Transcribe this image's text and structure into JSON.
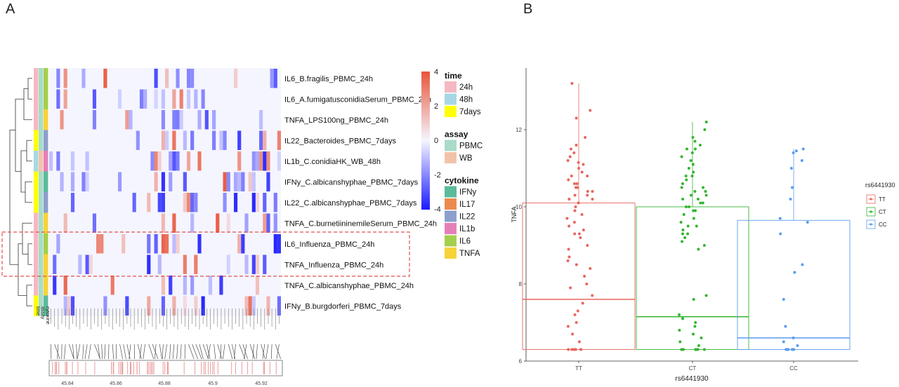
{
  "panels": {
    "a": "A",
    "b": "B"
  },
  "chart_data": [
    {
      "type": "heatmap",
      "rows": [
        {
          "label": "IL6_B.fragilis_PBMC_24h",
          "time": "24h",
          "assay": "PBMC",
          "cytokine": "IL6"
        },
        {
          "label": "IL6_A.fumigatusconidiaSerum_PBMC_24h",
          "time": "24h",
          "assay": "PBMC",
          "cytokine": "IL6"
        },
        {
          "label": "TNFA_LPS100ng_PBMC_24h",
          "time": "24h",
          "assay": "PBMC",
          "cytokine": "TNFA"
        },
        {
          "label": "IL22_Bacteroides_PBMC_7days",
          "time": "7days",
          "assay": "PBMC",
          "cytokine": "IL22"
        },
        {
          "label": "IL1b_C.conidiaHK_WB_48h",
          "time": "48h",
          "assay": "WB",
          "cytokine": "IL1b"
        },
        {
          "label": "IFNy_C.albicanshyphae_PBMC_7days",
          "time": "7days",
          "assay": "PBMC",
          "cytokine": "IFNy"
        },
        {
          "label": "IL22_C.albicanshyphae_PBMC_7days",
          "time": "7days",
          "assay": "PBMC",
          "cytokine": "IL22"
        },
        {
          "label": "TNFA_C.burnetiininemileSerum_PBMC_24h",
          "time": "24h",
          "assay": "PBMC",
          "cytokine": "TNFA"
        },
        {
          "label": "IL6_Influenza_PBMC_24h",
          "time": "24h",
          "assay": "PBMC",
          "cytokine": "IL6"
        },
        {
          "label": "TNFA_Influenza_PBMC_24h",
          "time": "24h",
          "assay": "PBMC",
          "cytokine": "TNFA"
        },
        {
          "label": "TNFA_C.albicanshyphae_PBMC_24h",
          "time": "24h",
          "assay": "PBMC",
          "cytokine": "TNFA"
        },
        {
          "label": "IFNy_B.burgdorferi_PBMC_7days",
          "time": "7days",
          "assay": "PBMC",
          "cytokine": "IFNy"
        }
      ],
      "annotation_columns": [
        "time",
        "assay",
        "cytokine"
      ],
      "highlighted_rows": [
        8,
        9
      ],
      "color_scale": {
        "ticks": [
          4,
          2,
          0,
          -2,
          -4
        ],
        "low": "#1a1aff",
        "mid": "#f5f5ff",
        "high": "#e8553a"
      },
      "legends": [
        {
          "title": "time",
          "items": [
            {
              "label": "24h",
              "color": "#f4b9c2"
            },
            {
              "label": "48h",
              "color": "#a6d8e3"
            },
            {
              "label": "7days",
              "color": "#ffff00"
            }
          ]
        },
        {
          "title": "assay",
          "items": [
            {
              "label": "PBMC",
              "color": "#a8dcc8"
            },
            {
              "label": "WB",
              "color": "#f3c3a8"
            }
          ]
        },
        {
          "title": "cytokine",
          "items": [
            {
              "label": "IFNy",
              "color": "#5bbb9a"
            },
            {
              "label": "IL17",
              "color": "#ec8a4e"
            },
            {
              "label": "IL22",
              "color": "#8d9fcd"
            },
            {
              "label": "IL1b",
              "color": "#e57fb8"
            },
            {
              "label": "IL6",
              "color": "#a4cf4d"
            },
            {
              "label": "TNFA",
              "color": "#f7d33a"
            }
          ]
        }
      ],
      "genome_axis": {
        "ticks": [
          "45.84",
          "45.86",
          "45.88",
          "45.9",
          "45.92"
        ]
      },
      "colors": {
        "highlight_box": "#e05050"
      }
    },
    {
      "type": "box",
      "xlabel": "rs6441930",
      "ylabel": "TNFA",
      "categories": [
        "TT",
        "CT",
        "CC"
      ],
      "yticks": [
        6,
        8,
        10,
        12
      ],
      "ylim": [
        6,
        13.6
      ],
      "legend": {
        "title": "rs6441930",
        "placement": "right",
        "items": [
          {
            "label": "TT",
            "color": "#e7675e"
          },
          {
            "label": "CT",
            "color": "#35b532"
          },
          {
            "label": "CC",
            "color": "#5b9cf0"
          }
        ]
      },
      "series": [
        {
          "name": "TT",
          "color": "#e7675e",
          "q1": 6.3,
          "median": 7.6,
          "q3": 10.1,
          "whisker_low": 6.3,
          "whisker_high": 13.2,
          "points": [
            13.2,
            12.5,
            12.3,
            11.8,
            11.6,
            11.5,
            11.4,
            11.3,
            11.2,
            11.15,
            11.1,
            11.0,
            10.9,
            10.8,
            10.8,
            10.7,
            10.6,
            10.6,
            10.5,
            10.5,
            10.4,
            10.4,
            10.3,
            10.3,
            10.2,
            10.2,
            10.1,
            10.0,
            9.9,
            9.8,
            9.7,
            9.6,
            9.5,
            9.4,
            9.3,
            9.3,
            9.2,
            9.0,
            8.9,
            8.7,
            8.6,
            8.5,
            8.4,
            8.2,
            8.0,
            7.9,
            7.7,
            7.5,
            7.3,
            7.2,
            7.0,
            6.9,
            6.7,
            6.5,
            6.3,
            6.3,
            6.3,
            6.3,
            6.3,
            6.3,
            6.3,
            6.3
          ]
        },
        {
          "name": "CT",
          "color": "#35b532",
          "q1": 6.3,
          "median": 7.15,
          "q3": 10.0,
          "whisker_low": 6.3,
          "whisker_high": 12.2,
          "points": [
            12.2,
            12.0,
            11.8,
            11.7,
            11.6,
            11.5,
            11.5,
            11.4,
            11.3,
            11.2,
            11.1,
            11.0,
            10.9,
            10.8,
            10.8,
            10.7,
            10.6,
            10.5,
            10.5,
            10.4,
            10.4,
            10.3,
            10.3,
            10.2,
            10.2,
            10.1,
            10.1,
            10.0,
            10.0,
            9.9,
            9.9,
            9.8,
            9.7,
            9.6,
            9.5,
            9.5,
            9.4,
            9.3,
            9.3,
            9.2,
            9.1,
            9.0,
            8.9,
            7.7,
            7.6,
            7.2,
            7.1,
            7.0,
            6.9,
            6.8,
            6.7,
            6.6,
            6.5,
            6.4,
            6.3,
            6.3,
            6.3,
            6.3,
            6.3,
            6.3,
            6.3,
            6.3,
            6.3,
            6.3
          ]
        },
        {
          "name": "CC",
          "color": "#5b9cf0",
          "q1": 6.3,
          "median": 6.6,
          "q3": 9.65,
          "whisker_low": 6.3,
          "whisker_high": 11.5,
          "points": [
            11.5,
            11.45,
            11.4,
            11.2,
            11.0,
            10.5,
            10.2,
            9.7,
            9.6,
            9.3,
            8.5,
            8.3,
            7.6,
            6.9,
            6.6,
            6.5,
            6.4,
            6.3,
            6.3,
            6.3,
            6.3,
            6.3,
            6.3
          ]
        }
      ]
    }
  ]
}
